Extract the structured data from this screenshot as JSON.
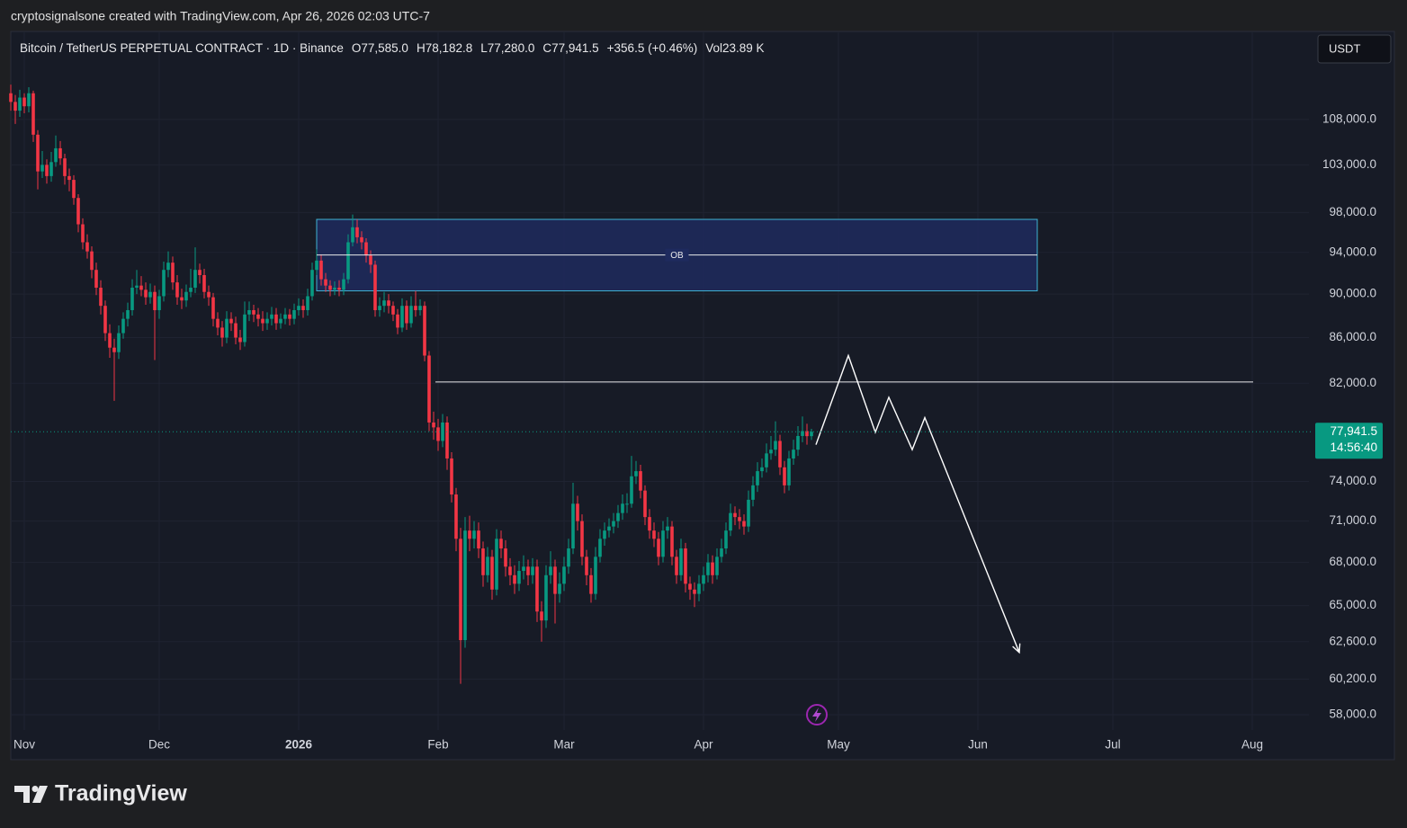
{
  "watermark": "cryptosignalsone created with TradingView.com, Apr 26, 2026 02:03 UTC-7",
  "brand": "TradingView",
  "currency_button": "USDT",
  "chart_data": {
    "type": "candlestick",
    "header": {
      "symbol": "Bitcoin / TetherUS PERPETUAL CONTRACT · 1D · Binance",
      "ohlc": [
        {
          "key": "O",
          "value": 77585,
          "label": "77,585.0"
        },
        {
          "key": "H",
          "value": 78182.8,
          "label": "78,182.8"
        },
        {
          "key": "L",
          "value": 77280,
          "label": "77,280.0"
        },
        {
          "key": "C",
          "value": 77941.5,
          "label": "77,941.5"
        }
      ],
      "change": "+356.5 (+0.46%)",
      "volume_key": "Vol",
      "volume": "23.89 K"
    },
    "up_color": "#089981",
    "down_color": "#f23645",
    "log_scale": true,
    "grid": true,
    "ylim": [
      55340,
      118400
    ],
    "yticks": [
      {
        "value": 58000,
        "label": "58,000.0"
      },
      {
        "value": 60200,
        "label": "60,200.0"
      },
      {
        "value": 62600,
        "label": "62,600.0"
      },
      {
        "value": 65000,
        "label": "65,000.0"
      },
      {
        "value": 68000,
        "label": "68,000.0"
      },
      {
        "value": 71000,
        "label": "71,000.0"
      },
      {
        "value": 74000,
        "label": "74,000.0"
      },
      {
        "value": 82000,
        "label": "82,000.0"
      },
      {
        "value": 86000,
        "label": "86,000.0"
      },
      {
        "value": 90000,
        "label": "90,000.0"
      },
      {
        "value": 94000,
        "label": "94,000.0"
      },
      {
        "value": 98000,
        "label": "98,000.0"
      },
      {
        "value": 103000,
        "label": "103,000.0"
      },
      {
        "value": 108000,
        "label": "108,000.0"
      }
    ],
    "xlim": [
      -3,
      284.6
    ],
    "xticks": [
      {
        "value": 0,
        "label": "Nov"
      },
      {
        "value": 30,
        "label": "Dec"
      },
      {
        "value": 61,
        "label": "2026"
      },
      {
        "value": 92,
        "label": "Feb"
      },
      {
        "value": 120,
        "label": "Mar"
      },
      {
        "value": 151,
        "label": "Apr"
      },
      {
        "value": 181,
        "label": "May"
      },
      {
        "value": 212,
        "label": "Jun"
      },
      {
        "value": 242,
        "label": "Jul"
      },
      {
        "value": 273,
        "label": "Aug"
      }
    ],
    "x": [
      -3,
      -2,
      -1,
      0,
      1,
      2,
      3,
      4,
      5,
      6,
      7,
      8,
      9,
      10,
      11,
      12,
      13,
      14,
      15,
      16,
      17,
      18,
      19,
      20,
      21,
      22,
      23,
      24,
      25,
      26,
      27,
      28,
      29,
      30,
      31,
      32,
      33,
      34,
      35,
      36,
      37,
      38,
      39,
      40,
      41,
      42,
      43,
      44,
      45,
      46,
      47,
      48,
      49,
      50,
      51,
      52,
      53,
      54,
      55,
      56,
      57,
      58,
      59,
      60,
      61,
      62,
      63,
      64,
      65,
      66,
      67,
      68,
      69,
      70,
      71,
      72,
      73,
      74,
      75,
      76,
      77,
      78,
      79,
      80,
      81,
      82,
      83,
      84,
      85,
      86,
      87,
      88,
      89,
      90,
      91,
      92,
      93,
      94,
      95,
      96,
      97,
      98,
      99,
      100,
      101,
      102,
      103,
      104,
      105,
      106,
      107,
      108,
      109,
      110,
      111,
      112,
      113,
      114,
      115,
      116,
      117,
      118,
      119,
      120,
      121,
      122,
      123,
      124,
      125,
      126,
      127,
      128,
      129,
      130,
      131,
      132,
      133,
      134,
      135,
      136,
      137,
      138,
      139,
      140,
      141,
      142,
      143,
      144,
      145,
      146,
      147,
      148,
      149,
      150,
      151,
      152,
      153,
      154,
      155,
      156,
      157,
      158,
      159,
      160,
      161,
      162,
      163,
      164,
      165,
      166,
      167,
      168,
      169,
      170,
      171,
      172,
      173,
      174,
      175
    ],
    "open": [
      111000,
      110000,
      109000,
      110500,
      109500,
      111000,
      106300,
      102300,
      103000,
      101800,
      103300,
      104800,
      103700,
      101800,
      101400,
      99500,
      96800,
      95000,
      94100,
      92300,
      90600,
      88900,
      86400,
      85100,
      84700,
      86400,
      87700,
      88500,
      90600,
      90800,
      90400,
      89700,
      90200,
      88500,
      89800,
      92300,
      93000,
      91100,
      89700,
      89400,
      90200,
      90600,
      92300,
      91800,
      90200,
      89700,
      87700,
      86900,
      86000,
      87700,
      87300,
      86000,
      85600,
      88100,
      88500,
      88100,
      87700,
      87300,
      87700,
      88100,
      87300,
      87700,
      88100,
      87700,
      88500,
      88900,
      88500,
      89800,
      92300,
      93200,
      91400,
      90800,
      90400,
      90600,
      90400,
      91400,
      95000,
      96500,
      95500,
      95000,
      93700,
      92800,
      88500,
      88900,
      89400,
      88900,
      88100,
      86900,
      88900,
      87300,
      88900,
      88500,
      88900,
      84400,
      78700,
      78300,
      77200,
      78700,
      75800,
      73000,
      69700,
      62700,
      70300,
      69700,
      70300,
      69000,
      67100,
      68400,
      66100,
      69700,
      69000,
      67700,
      67100,
      66500,
      67400,
      67700,
      67100,
      67700,
      64600,
      64000,
      67100,
      67700,
      65800,
      66500,
      67700,
      69000,
      72300,
      71000,
      68400,
      67100,
      65800,
      68400,
      69700,
      70300,
      70600,
      71000,
      71600,
      72300,
      72300,
      74400,
      74800,
      73300,
      71300,
      70300,
      69700,
      68400,
      70300,
      70600,
      68400,
      67100,
      69000,
      66500,
      66100,
      65800,
      66500,
      67100,
      68000,
      67100,
      68400,
      69000,
      70300,
      71600,
      71300,
      71000,
      70600,
      72600,
      73700,
      74800,
      75100,
      76200,
      76500,
      77200,
      75100,
      73700,
      75800,
      76500,
      77600,
      78000,
      77585
    ],
    "high": [
      112000,
      110800,
      111400,
      111000,
      111700,
      111300,
      106800,
      104500,
      103600,
      104400,
      106200,
      105600,
      104200,
      102600,
      101900,
      99900,
      97400,
      95800,
      94600,
      93000,
      91300,
      89400,
      87200,
      85900,
      87100,
      88300,
      89200,
      91400,
      92300,
      91700,
      91100,
      91000,
      90800,
      90400,
      93100,
      94100,
      93600,
      91800,
      90500,
      90900,
      92400,
      94500,
      92900,
      92400,
      90800,
      90100,
      88300,
      87500,
      88400,
      88300,
      87900,
      86700,
      89300,
      89300,
      89000,
      88700,
      88400,
      88300,
      88800,
      88700,
      88200,
      88700,
      88600,
      89100,
      89600,
      89500,
      90500,
      93000,
      94300,
      93800,
      92000,
      91300,
      91200,
      91300,
      92000,
      95800,
      97800,
      97300,
      96100,
      95400,
      94200,
      93200,
      89700,
      90200,
      90000,
      89300,
      88600,
      89600,
      89400,
      89800,
      90300,
      89500,
      89300,
      84800,
      79600,
      79000,
      79400,
      79200,
      76300,
      73500,
      70500,
      71300,
      71400,
      71000,
      70900,
      69500,
      69100,
      68900,
      70400,
      70300,
      69600,
      68300,
      67800,
      68100,
      68500,
      68200,
      68300,
      68200,
      65300,
      67800,
      68800,
      68200,
      67300,
      68400,
      69700,
      73900,
      72900,
      71500,
      68900,
      67600,
      69100,
      70400,
      70900,
      71200,
      71600,
      72200,
      73000,
      73100,
      76000,
      75600,
      75300,
      73700,
      71900,
      70900,
      70200,
      71000,
      71300,
      71000,
      68900,
      69700,
      69400,
      67000,
      66600,
      67100,
      67700,
      68600,
      68500,
      69000,
      69700,
      70900,
      72300,
      72100,
      71900,
      71500,
      73300,
      74400,
      75500,
      75800,
      77000,
      77600,
      78800,
      77700,
      75600,
      76400,
      77300,
      78400,
      79200,
      78600,
      78182.8
    ],
    "low": [
      109000,
      107500,
      108300,
      108700,
      108800,
      105500,
      100400,
      101600,
      101000,
      101200,
      102800,
      103000,
      100900,
      100200,
      98800,
      96000,
      94300,
      93400,
      91500,
      89900,
      88100,
      85700,
      84200,
      80500,
      84100,
      85900,
      87000,
      88000,
      90000,
      89800,
      89000,
      89100,
      84000,
      87700,
      89300,
      91600,
      90400,
      89000,
      88600,
      88800,
      89700,
      90100,
      91000,
      89600,
      88900,
      87000,
      86200,
      85200,
      85500,
      86600,
      85400,
      84900,
      85200,
      87500,
      87400,
      87000,
      86600,
      86700,
      87100,
      86700,
      86800,
      87200,
      87100,
      87200,
      88000,
      87800,
      88000,
      89400,
      91800,
      90800,
      90200,
      89800,
      89900,
      89800,
      89900,
      91000,
      94600,
      94900,
      94300,
      93000,
      92000,
      87900,
      87900,
      88300,
      88200,
      87500,
      86300,
      86500,
      86700,
      86900,
      87900,
      88000,
      83900,
      78000,
      77300,
      76400,
      76700,
      74900,
      72400,
      68800,
      59900,
      62200,
      68800,
      69000,
      68300,
      66300,
      66600,
      65400,
      65700,
      68300,
      67000,
      66400,
      65800,
      66000,
      66800,
      66400,
      66500,
      63900,
      62600,
      63500,
      66500,
      63800,
      65200,
      66000,
      67200,
      68600,
      70300,
      67800,
      66400,
      65200,
      65400,
      68000,
      69200,
      69800,
      70100,
      70500,
      71100,
      71600,
      72000,
      73800,
      72700,
      70700,
      69700,
      69100,
      67800,
      68000,
      69700,
      67800,
      66500,
      66700,
      65900,
      65400,
      64900,
      65300,
      66000,
      66600,
      66500,
      66800,
      68000,
      68600,
      69900,
      70700,
      70400,
      70000,
      70200,
      72100,
      73200,
      74300,
      74700,
      75700,
      76000,
      74500,
      73100,
      73300,
      75300,
      76000,
      77100,
      76900,
      77280
    ],
    "close": [
      110000,
      109000,
      110500,
      109500,
      111000,
      106300,
      102300,
      103000,
      101800,
      103300,
      104800,
      103700,
      101800,
      101400,
      99500,
      96800,
      95000,
      94100,
      92300,
      90600,
      88900,
      86400,
      85100,
      84700,
      86400,
      87700,
      88500,
      90600,
      90800,
      90400,
      89700,
      90200,
      88500,
      89800,
      92300,
      93000,
      91100,
      89700,
      89400,
      90200,
      90600,
      92300,
      91800,
      90200,
      89700,
      87700,
      86900,
      86000,
      87700,
      87300,
      86000,
      85600,
      88100,
      88500,
      88100,
      87700,
      87300,
      87700,
      88100,
      87300,
      87700,
      88100,
      87700,
      88500,
      88900,
      88500,
      89800,
      92300,
      93200,
      91400,
      90800,
      90400,
      90600,
      90400,
      91400,
      95000,
      96500,
      95500,
      95000,
      93700,
      92800,
      88500,
      88900,
      89400,
      88900,
      88100,
      86900,
      88900,
      87300,
      88900,
      88500,
      88900,
      84400,
      78700,
      78300,
      77200,
      78700,
      75800,
      73000,
      69700,
      62700,
      70300,
      69700,
      70300,
      69000,
      67100,
      68400,
      66100,
      69700,
      69000,
      67700,
      67100,
      66500,
      67400,
      67700,
      67100,
      67700,
      64600,
      64000,
      67100,
      67700,
      65800,
      66500,
      67700,
      69000,
      72300,
      71000,
      68400,
      67100,
      65800,
      68400,
      69700,
      70300,
      70600,
      71000,
      71600,
      72300,
      72300,
      74400,
      74800,
      73300,
      71300,
      70300,
      69700,
      68400,
      70300,
      70600,
      68400,
      67100,
      69000,
      66500,
      66100,
      65800,
      66500,
      67100,
      68000,
      67100,
      68400,
      69000,
      70300,
      71600,
      71300,
      71000,
      70600,
      72600,
      73700,
      74800,
      75100,
      76200,
      76500,
      77200,
      75100,
      73700,
      75800,
      76500,
      77600,
      78000,
      77585,
      77941.5
    ],
    "last_price": {
      "value": 77941.5,
      "label": "77,941.5"
    },
    "countdown": "14:56:40",
    "ob_zone": {
      "label": "OB",
      "x": [
        65,
        225.2
      ],
      "y": [
        90300,
        97300
      ],
      "mid": 93750
    },
    "level": {
      "x": [
        91.4,
        273.2
      ],
      "y": 82100
    },
    "projection": {
      "x": [
        176,
        183.2,
        189.2,
        192.2,
        197.4,
        200.2,
        221.2
      ],
      "y": [
        76900,
        84400,
        77900,
        80800,
        76500,
        79100,
        61900
      ]
    }
  }
}
